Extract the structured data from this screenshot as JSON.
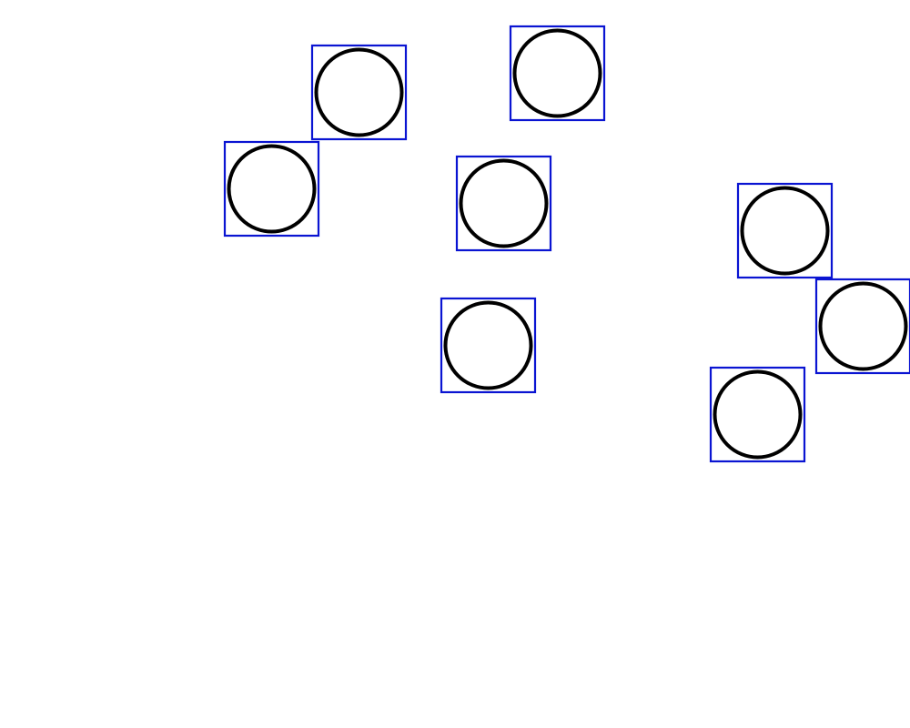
{
  "colors": {
    "background": "#ffffff",
    "box_stroke": "#0a14d2",
    "circle_stroke": "#000000"
  },
  "items": [
    {
      "shape": "circle",
      "outlined_by": "square"
    },
    {
      "shape": "circle",
      "outlined_by": "square"
    },
    {
      "shape": "circle",
      "outlined_by": "square"
    },
    {
      "shape": "circle",
      "outlined_by": "square"
    },
    {
      "shape": "circle",
      "outlined_by": "square"
    },
    {
      "shape": "circle",
      "outlined_by": "square"
    },
    {
      "shape": "circle",
      "outlined_by": "square"
    }
  ]
}
